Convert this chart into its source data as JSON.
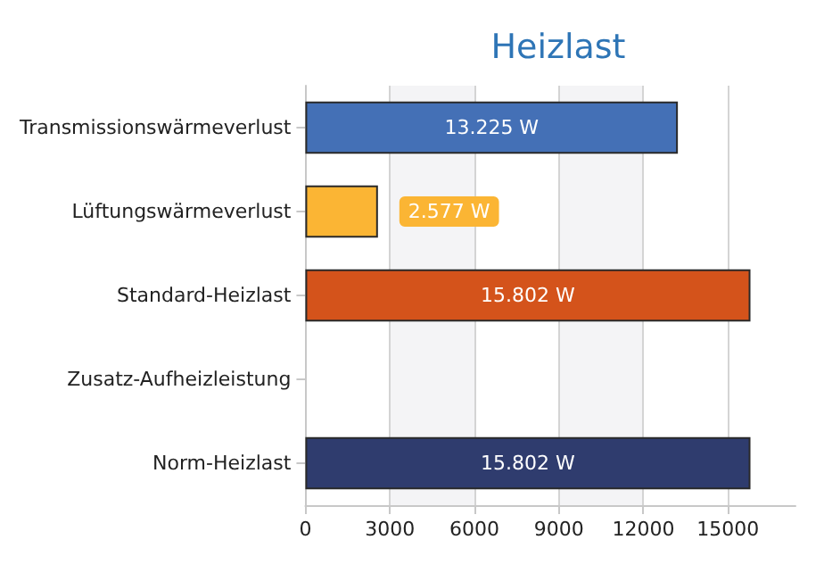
{
  "chart_data": {
    "type": "bar",
    "orientation": "horizontal",
    "title": "Heizlast",
    "categories": [
      "Transmissionswärmeverlust",
      "Lüftungswärmeverlust",
      "Standard-Heizlast",
      "Zusatz-Aufheizleistung",
      "Norm-Heizlast"
    ],
    "values": [
      13225,
      2577,
      15802,
      null,
      15802
    ],
    "colors": [
      "#4470b6",
      "#fbb534",
      "#d4531b",
      null,
      "#2f3c6e"
    ],
    "value_labels": [
      "13.225 W",
      "2.577 W",
      "15.802 W",
      null,
      "15.802 W"
    ],
    "xlim": [
      0,
      17400
    ],
    "xticks": [
      0,
      3000,
      6000,
      9000,
      12000,
      15000
    ],
    "grid": "x"
  }
}
